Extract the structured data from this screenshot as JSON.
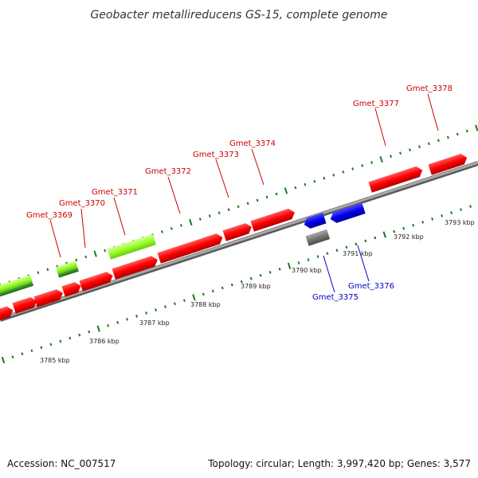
{
  "title": "Geobacter metallireducens GS-15, complete genome",
  "footer": {
    "accession": "Accession: NC_007517",
    "summary": "Topology: circular; Length: 3,997,420 bp; Genes: 3,577"
  },
  "colors": {
    "cds_forward": "#ff0000",
    "cds_reverse": "#0000dd",
    "gene_bar": "#9aff2a",
    "gene_bar_dark": "#2d8a1c",
    "reverse_gray": "#777777",
    "tick": "#1a7a1a",
    "backbone": "#909090",
    "label_red": "#cc0000",
    "label_blue": "#0000cc"
  },
  "kbp_labels": [
    "3785 kbp",
    "3786 kbp",
    "3787 kbp",
    "3788 kbp",
    "3789 kbp",
    "3790 kbp",
    "3791 kbp",
    "3792 kbp",
    "3793 kbp"
  ],
  "gene_labels": {
    "gmet_3369": "Gmet_3369",
    "gmet_3370": "Gmet_3370",
    "gmet_3371": "Gmet_3371",
    "gmet_3372": "Gmet_3372",
    "gmet_3373": "Gmet_3373",
    "gmet_3374": "Gmet_3374",
    "gmet_3375": "Gmet_3375",
    "gmet_3376": "Gmet_3376",
    "gmet_3377": "Gmet_3377",
    "gmet_3378": "Gmet_3378"
  }
}
